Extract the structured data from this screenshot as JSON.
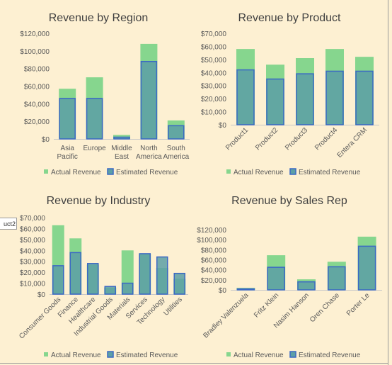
{
  "colors": {
    "background": "#fdf0d2",
    "actual": "#86d68e",
    "estimated_fill": "#5c9fa6",
    "estimated_border": "#3b68c4",
    "axis_text": "#595959",
    "title_text": "#404040"
  },
  "side_tab_label": "uct2",
  "chart_data": [
    {
      "type": "bar",
      "title": "Revenue by Region",
      "categories": [
        [
          "Asia",
          "Pacific"
        ],
        [
          "Europe"
        ],
        [
          "Middle",
          "East"
        ],
        [
          "North",
          "America"
        ],
        [
          "South",
          "America"
        ]
      ],
      "yticks": [
        "$0",
        "$20,000",
        "$40,000",
        "$60,000",
        "$80,000",
        "$100,000",
        "$120,000"
      ],
      "ylim": [
        0,
        120000
      ],
      "series": [
        {
          "name": "Actual Revenue",
          "values": [
            57000,
            70000,
            4500,
            108000,
            21000
          ]
        },
        {
          "name": "Estimated Revenue",
          "values": [
            46000,
            46000,
            2000,
            88000,
            15000
          ]
        }
      ],
      "legend": "bottom",
      "grid": false
    },
    {
      "type": "bar",
      "title": "Revenue by Product",
      "categories": [
        [
          "Product1"
        ],
        [
          "Product2"
        ],
        [
          "Product3"
        ],
        [
          "Product4"
        ],
        [
          "Entera CRM"
        ]
      ],
      "yticks": [
        "$0",
        "$10,000",
        "$20,000",
        "$30,000",
        "$40,000",
        "$50,000",
        "$60,000",
        "$70,000"
      ],
      "ylim": [
        0,
        70000
      ],
      "series": [
        {
          "name": "Actual Revenue",
          "values": [
            58000,
            46000,
            51000,
            58000,
            52000
          ]
        },
        {
          "name": "Estimated Revenue",
          "values": [
            42000,
            35000,
            39000,
            41000,
            41000
          ]
        }
      ],
      "legend": "bottom",
      "grid": false
    },
    {
      "type": "bar",
      "title": "Revenue by Industry",
      "categories": [
        [
          "Consumer Goods"
        ],
        [
          "Finance"
        ],
        [
          "Healthcare"
        ],
        [
          "Industrial Goods"
        ],
        [
          "Materials"
        ],
        [
          "Services"
        ],
        [
          "Technology"
        ],
        [
          "Utilities"
        ]
      ],
      "yticks": [
        "$0",
        "$10,000",
        "$20,000",
        "$30,000",
        "$40,000",
        "$50,000",
        "$60,000",
        "$70,000"
      ],
      "ylim": [
        0,
        70000
      ],
      "series": [
        {
          "name": "Actual Revenue",
          "values": [
            63000,
            51000,
            27000,
            6000,
            40000,
            37000,
            24000,
            14000
          ]
        },
        {
          "name": "Estimated Revenue",
          "values": [
            26000,
            38000,
            28000,
            7000,
            10000,
            37000,
            34000,
            19000
          ]
        }
      ],
      "legend": "bottom",
      "grid": false
    },
    {
      "type": "bar",
      "title": "Revenue by Sales Rep",
      "categories": [
        [
          "Bradley Valenzuela"
        ],
        [
          "Fritz Klein"
        ],
        [
          "Nasim Hanson"
        ],
        [
          "Oren Chase"
        ],
        [
          "Porter Le"
        ]
      ],
      "yticks": [
        "$0",
        "$20,000",
        "$40,000",
        "$60,000",
        "$80,000",
        "$100,000",
        "$120,000"
      ],
      "ylim": [
        0,
        120000
      ],
      "series": [
        {
          "name": "Actual Revenue",
          "values": [
            4000,
            69000,
            21000,
            56000,
            106000
          ]
        },
        {
          "name": "Estimated Revenue",
          "values": [
            2000,
            45000,
            16000,
            46000,
            87000
          ]
        }
      ],
      "legend": "bottom",
      "grid": false
    }
  ]
}
